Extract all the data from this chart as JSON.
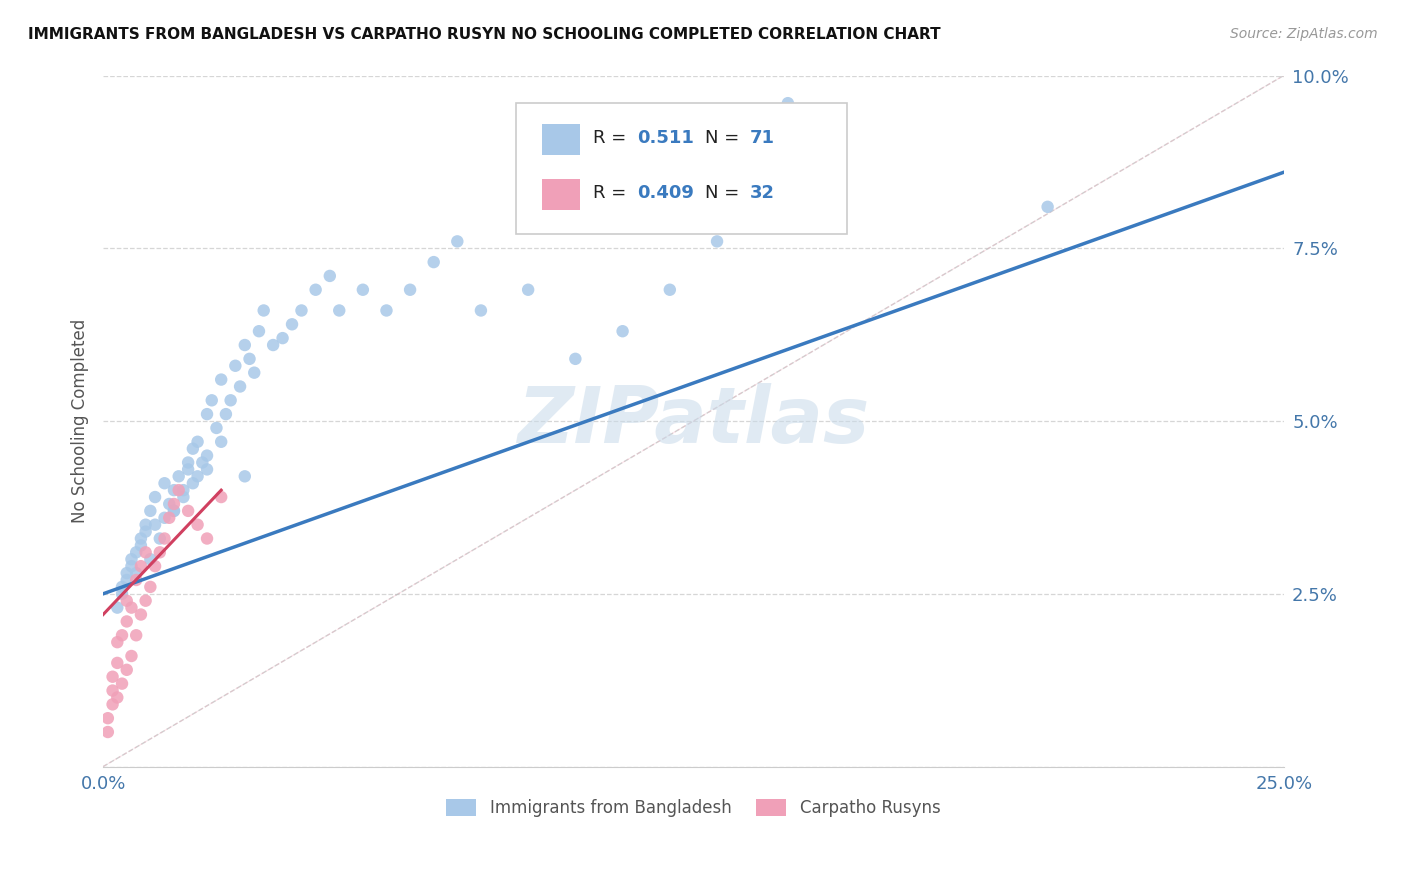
{
  "title": "IMMIGRANTS FROM BANGLADESH VS CARPATHO RUSYN NO SCHOOLING COMPLETED CORRELATION CHART",
  "source": "Source: ZipAtlas.com",
  "ylabel": "No Schooling Completed",
  "xlim": [
    0.0,
    0.25
  ],
  "ylim": [
    0.0,
    0.1
  ],
  "xticks": [
    0.0,
    0.05,
    0.1,
    0.15,
    0.2,
    0.25
  ],
  "yticks": [
    0.0,
    0.025,
    0.05,
    0.075,
    0.1
  ],
  "xticklabels": [
    "0.0%",
    "",
    "",
    "",
    "",
    "25.0%"
  ],
  "yticklabels_right": [
    "",
    "2.5%",
    "5.0%",
    "7.5%",
    "10.0%"
  ],
  "legend1_label": "Immigrants from Bangladesh",
  "legend2_label": "Carpatho Rusyns",
  "r1": "0.511",
  "n1": "71",
  "r2": "0.409",
  "n2": "32",
  "color_blue": "#a8c8e8",
  "color_pink": "#f0a0b8",
  "line_color_blue": "#3a7abf",
  "line_color_pink": "#d04060",
  "watermark": "ZIPatlas",
  "blue_scatter_x": [
    0.004,
    0.005,
    0.006,
    0.007,
    0.008,
    0.009,
    0.01,
    0.011,
    0.012,
    0.013,
    0.014,
    0.015,
    0.015,
    0.016,
    0.017,
    0.018,
    0.018,
    0.019,
    0.02,
    0.02,
    0.021,
    0.022,
    0.022,
    0.023,
    0.024,
    0.025,
    0.026,
    0.027,
    0.028,
    0.029,
    0.03,
    0.031,
    0.032,
    0.033,
    0.034,
    0.036,
    0.038,
    0.04,
    0.042,
    0.045,
    0.048,
    0.05,
    0.055,
    0.06,
    0.065,
    0.07,
    0.075,
    0.08,
    0.09,
    0.1,
    0.11,
    0.12,
    0.13,
    0.003,
    0.004,
    0.005,
    0.006,
    0.007,
    0.008,
    0.009,
    0.01,
    0.011,
    0.013,
    0.015,
    0.017,
    0.019,
    0.022,
    0.025,
    0.03,
    0.145,
    0.2
  ],
  "blue_scatter_y": [
    0.026,
    0.028,
    0.03,
    0.028,
    0.032,
    0.034,
    0.03,
    0.035,
    0.033,
    0.036,
    0.038,
    0.037,
    0.04,
    0.042,
    0.04,
    0.044,
    0.043,
    0.046,
    0.042,
    0.047,
    0.044,
    0.043,
    0.051,
    0.053,
    0.049,
    0.056,
    0.051,
    0.053,
    0.058,
    0.055,
    0.061,
    0.059,
    0.057,
    0.063,
    0.066,
    0.061,
    0.062,
    0.064,
    0.066,
    0.069,
    0.071,
    0.066,
    0.069,
    0.066,
    0.069,
    0.073,
    0.076,
    0.066,
    0.069,
    0.059,
    0.063,
    0.069,
    0.076,
    0.023,
    0.025,
    0.027,
    0.029,
    0.031,
    0.033,
    0.035,
    0.037,
    0.039,
    0.041,
    0.037,
    0.039,
    0.041,
    0.045,
    0.047,
    0.042,
    0.096,
    0.081
  ],
  "pink_scatter_x": [
    0.001,
    0.001,
    0.002,
    0.002,
    0.002,
    0.003,
    0.003,
    0.003,
    0.004,
    0.004,
    0.005,
    0.005,
    0.005,
    0.006,
    0.006,
    0.007,
    0.007,
    0.008,
    0.008,
    0.009,
    0.009,
    0.01,
    0.011,
    0.012,
    0.013,
    0.014,
    0.015,
    0.016,
    0.018,
    0.02,
    0.022,
    0.025
  ],
  "pink_scatter_y": [
    0.005,
    0.007,
    0.009,
    0.011,
    0.013,
    0.01,
    0.015,
    0.018,
    0.012,
    0.019,
    0.014,
    0.021,
    0.024,
    0.016,
    0.023,
    0.019,
    0.027,
    0.022,
    0.029,
    0.024,
    0.031,
    0.026,
    0.029,
    0.031,
    0.033,
    0.036,
    0.038,
    0.04,
    0.037,
    0.035,
    0.033,
    0.039
  ],
  "blue_line_x0": 0.0,
  "blue_line_y0": 0.025,
  "blue_line_x1": 0.25,
  "blue_line_y1": 0.086,
  "pink_line_x0": 0.0,
  "pink_line_y0": 0.022,
  "pink_line_x1": 0.025,
  "pink_line_y1": 0.04
}
